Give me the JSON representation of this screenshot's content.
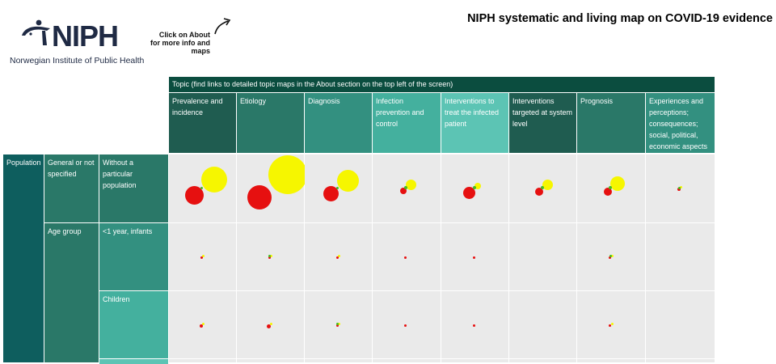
{
  "header": {
    "logo_text": "NIPH",
    "logo_subtitle": "Norwegian Institute of Public Health",
    "about_note": "Click on About for more info and maps",
    "title": "NIPH systematic and living map on COVID-19 evidence"
  },
  "colors": {
    "logo_navy": "#1f2a44",
    "topic_banner": "#0b4d3f",
    "cell_bg": "#eaeaea",
    "bubble_yellow": "#f6f600",
    "bubble_red": "#e61010",
    "bubble_green": "#44bb22"
  },
  "table": {
    "topic_header": "Topic (find links to detailed topic maps in the About section on the top left of the screen)",
    "topics": [
      {
        "label": "Prevalence and incidence",
        "color": "#1f5c50"
      },
      {
        "label": "Etiology",
        "color": "#2a7868"
      },
      {
        "label": "Diagnosis",
        "color": "#339080"
      },
      {
        "label": "Infection prevention and control",
        "color": "#44b09e"
      },
      {
        "label": "Interventions to treat the infected patient",
        "color": "#5cc4b4"
      },
      {
        "label": "Interventions targeted at system level",
        "color": "#1f5c50"
      },
      {
        "label": "Prognosis",
        "color": "#2a7868"
      },
      {
        "label": "Experiences and perceptions; consequences; social, political, economic aspects",
        "color": "#339080"
      }
    ],
    "population_label": "Population",
    "population_groups": [
      {
        "label": "General or not specified",
        "color": "#2a7868"
      },
      {
        "label": "Age group",
        "color": "#2a7868"
      }
    ],
    "subgroups": [
      {
        "label": "Without a particular population",
        "color": "#2a7868"
      },
      {
        "label": "<1 year, infants",
        "color": "#339080"
      },
      {
        "label": "Children",
        "color": "#44b09e"
      }
    ],
    "bubbles": [
      [
        {
          "yellow": 32,
          "red": 23,
          "green": 3
        },
        {
          "yellow": 48,
          "red": 30,
          "green": 0
        },
        {
          "yellow": 27,
          "red": 19,
          "green": 3
        },
        {
          "yellow": 13,
          "red": 8,
          "green": 4
        },
        {
          "yellow": 8,
          "red": 15,
          "green": 4
        },
        {
          "yellow": 13,
          "red": 10,
          "green": 4
        },
        {
          "yellow": 18,
          "red": 10,
          "green": 4
        },
        {
          "yellow": 3,
          "red": 4,
          "green": 3
        }
      ],
      [
        {
          "yellow": 3,
          "red": 3,
          "green": 0
        },
        {
          "yellow": 3,
          "red": 3,
          "green": 3
        },
        {
          "yellow": 3,
          "red": 3,
          "green": 0
        },
        {
          "yellow": 0,
          "red": 3,
          "green": 0
        },
        {
          "yellow": 0,
          "red": 3,
          "green": 0
        },
        {
          "yellow": 0,
          "red": 0,
          "green": 0
        },
        {
          "yellow": 3,
          "red": 3,
          "green": 3
        },
        {
          "yellow": 0,
          "red": 0,
          "green": 0
        }
      ],
      [
        {
          "yellow": 3,
          "red": 4,
          "green": 0
        },
        {
          "yellow": 3,
          "red": 5,
          "green": 0
        },
        {
          "yellow": 3,
          "red": 3,
          "green": 3
        },
        {
          "yellow": 0,
          "red": 3,
          "green": 0
        },
        {
          "yellow": 0,
          "red": 3,
          "green": 0
        },
        {
          "yellow": 0,
          "red": 0,
          "green": 0
        },
        {
          "yellow": 3,
          "red": 3,
          "green": 0
        },
        {
          "yellow": 0,
          "red": 0,
          "green": 0
        }
      ]
    ]
  }
}
